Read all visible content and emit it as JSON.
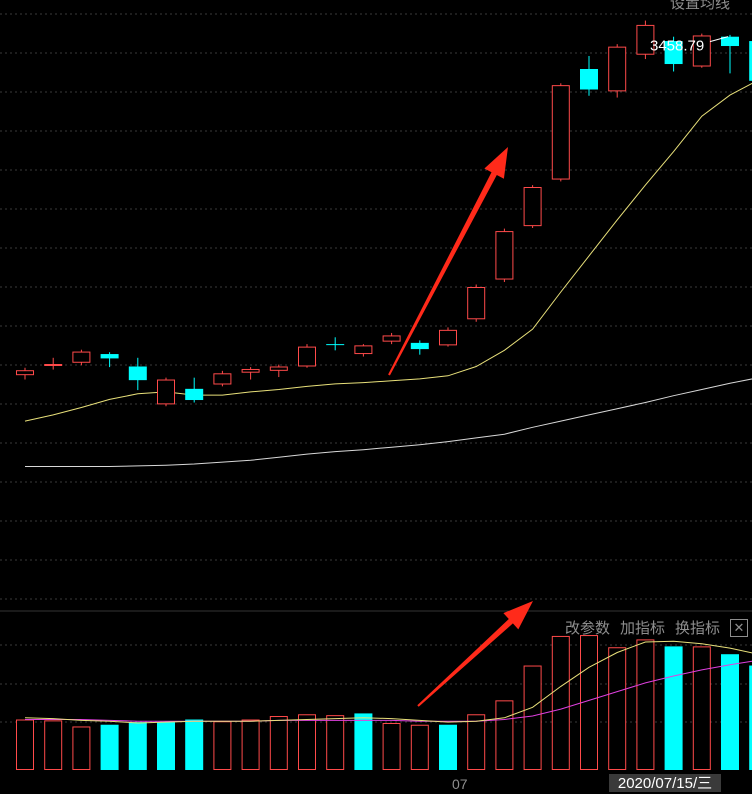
{
  "header": {
    "ma_setting_label": "设置均线"
  },
  "toolbar": {
    "param_label": "改参数",
    "add_indicator_label": "加指标",
    "switch_indicator_label": "换指标",
    "close_label": "✕"
  },
  "axis": {
    "x_tick_label": "07",
    "cursor_date_label": "2020/07/15/三"
  },
  "colors": {
    "up": "#ff4a4a",
    "down": "#00ffff",
    "ma_short": "#e8e07a",
    "ma_long": "#d8d8d8",
    "vol_ma_fast": "#e8e07a",
    "vol_ma_slow": "#e040e0",
    "arrow": "#ff2a1a",
    "grid": "#3a3a3a"
  },
  "chart_data": [
    {
      "type": "candlestick",
      "title": "",
      "max_label": "3458.79",
      "max_value": 3458.79,
      "ylim": [
        2550,
        3500
      ],
      "candles": [
        {
          "o": 2912,
          "c": 2920,
          "h": 2924,
          "l": 2905
        },
        {
          "o": 2927,
          "c": 2930,
          "h": 2940,
          "l": 2921
        },
        {
          "o": 2932,
          "c": 2950,
          "h": 2953,
          "l": 2928
        },
        {
          "o": 2946,
          "c": 2939,
          "h": 2949,
          "l": 2925
        },
        {
          "o": 2926,
          "c": 2904,
          "h": 2940,
          "l": 2888
        },
        {
          "o": 2865,
          "c": 2905,
          "h": 2908,
          "l": 2862
        },
        {
          "o": 2890,
          "c": 2872,
          "h": 2908,
          "l": 2868
        },
        {
          "o": 2897,
          "c": 2915,
          "h": 2919,
          "l": 2894
        },
        {
          "o": 2916,
          "c": 2922,
          "h": 2925,
          "l": 2905
        },
        {
          "o": 2919,
          "c": 2926,
          "h": 2929,
          "l": 2909
        },
        {
          "o": 2926,
          "c": 2958,
          "h": 2962,
          "l": 2924
        },
        {
          "o": 2962,
          "c": 2961,
          "h": 2973,
          "l": 2952
        },
        {
          "o": 2946,
          "c": 2960,
          "h": 2962,
          "l": 2942
        },
        {
          "o": 2966,
          "c": 2976,
          "h": 2980,
          "l": 2962
        },
        {
          "o": 2964,
          "c": 2954,
          "h": 2968,
          "l": 2945
        },
        {
          "o": 2960,
          "c": 2985,
          "h": 2989,
          "l": 2958
        },
        {
          "o": 3002,
          "c": 3054,
          "h": 3058,
          "l": 2998
        },
        {
          "o": 3066,
          "c": 3144,
          "h": 3148,
          "l": 3062
        },
        {
          "o": 3152,
          "c": 3215,
          "h": 3218,
          "l": 3149
        },
        {
          "o": 3227,
          "c": 3379,
          "h": 3382,
          "l": 3224
        },
        {
          "o": 3405,
          "c": 3372,
          "h": 3426,
          "l": 3362
        },
        {
          "o": 3369,
          "c": 3441,
          "h": 3445,
          "l": 3359
        },
        {
          "o": 3428,
          "c": 3476,
          "h": 3483,
          "l": 3421
        },
        {
          "o": 3450,
          "c": 3413,
          "h": 3457,
          "l": 3401
        },
        {
          "o": 3409,
          "c": 3459,
          "h": 3462,
          "l": 3407
        },
        {
          "o": 3457,
          "c": 3442,
          "h": 3460,
          "l": 3398
        },
        {
          "o": 3450,
          "c": 3386,
          "h": 3454,
          "l": 3372
        }
      ],
      "ma_short": [
        2838,
        2848,
        2860,
        2873,
        2882,
        2885,
        2880,
        2880,
        2885,
        2889,
        2894,
        2898,
        2900,
        2903,
        2906,
        2911,
        2926,
        2952,
        2986,
        3046,
        3104,
        3162,
        3218,
        3272,
        3329,
        3363,
        3387
      ],
      "ma_long": [
        2765,
        2765,
        2765,
        2765,
        2766,
        2767,
        2769,
        2772,
        2775,
        2780,
        2785,
        2789,
        2792,
        2796,
        2800,
        2805,
        2811,
        2817,
        2828,
        2838,
        2848,
        2858,
        2868,
        2879,
        2889,
        2899,
        2908
      ]
    },
    {
      "type": "bar",
      "title": "",
      "ylim": [
        0,
        170
      ],
      "values": [
        58,
        57,
        50,
        52,
        55,
        55,
        58,
        56,
        58,
        62,
        64,
        63,
        65,
        54,
        52,
        52,
        64,
        80,
        120,
        154,
        155,
        141,
        150,
        142,
        142,
        133,
        120
      ],
      "directions": [
        "up",
        "up",
        "up",
        "down",
        "down",
        "down",
        "down",
        "up",
        "up",
        "up",
        "up",
        "up",
        "down",
        "up",
        "up",
        "down",
        "up",
        "up",
        "up",
        "up",
        "up",
        "up",
        "up",
        "down",
        "up",
        "down",
        "down"
      ],
      "ma_fast": [
        60,
        59,
        57,
        56,
        54,
        55,
        56,
        56,
        56,
        57,
        58,
        59,
        60,
        59,
        57,
        55,
        56,
        60,
        72,
        96,
        118,
        135,
        147,
        148,
        145,
        140,
        133
      ],
      "ma_slow": [
        58,
        58,
        58,
        57,
        56,
        56,
        56,
        56,
        56,
        57,
        57,
        57,
        57,
        57,
        56,
        56,
        56,
        58,
        62,
        70,
        80,
        90,
        100,
        108,
        115,
        121,
        126
      ]
    }
  ]
}
